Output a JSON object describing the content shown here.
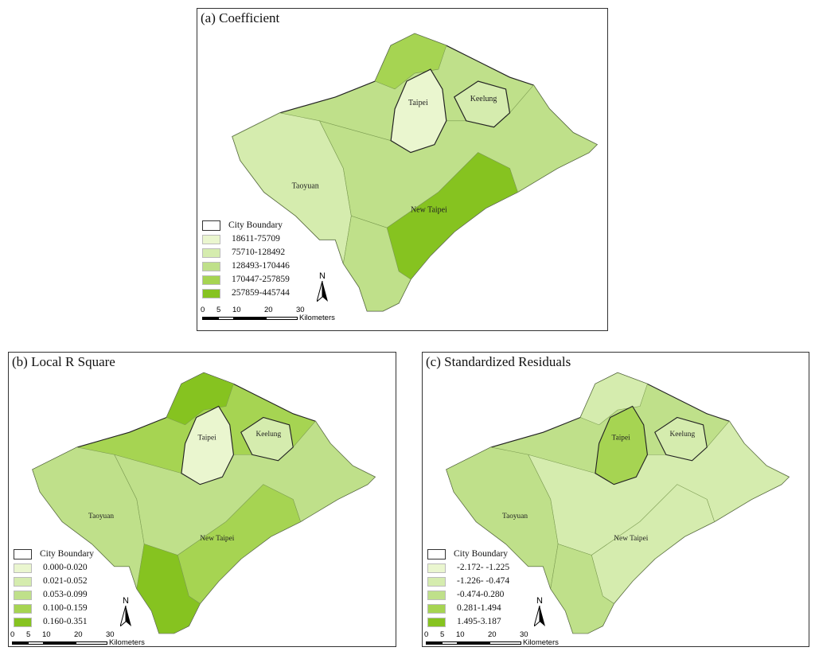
{
  "colors": [
    "#eaf6cf",
    "#d5ecae",
    "#bfe08a",
    "#a6d452",
    "#86c320"
  ],
  "boundary_label": "City Boundary",
  "place_labels": {
    "taipei": "Taipei",
    "keelung": "Keelung",
    "taoyuan": "Taoyuan",
    "new_taipei": "New Taipei"
  },
  "north_label": "N",
  "scale": {
    "ticks": [
      "0",
      "5",
      "10",
      "20",
      "30"
    ],
    "unit": "Kilometers"
  },
  "panels": [
    {
      "title": "(a) Coefficient",
      "classes": [
        "18611-75709",
        "75710-128492",
        "128493-170446",
        "170447-257859",
        "257859-445744"
      ],
      "region_class": {
        "base": 2,
        "taoyuan": 1,
        "taipei": 0,
        "keelung": 1,
        "middle": 2,
        "south_newtaipei": 4,
        "south_tip": 2,
        "north_tip": 3
      }
    },
    {
      "title": "(b) Local R Square",
      "classes": [
        "0.000-0.020",
        "0.021-0.052",
        "0.053-0.099",
        "0.100-0.159",
        "0.160-0.351"
      ],
      "region_class": {
        "base": 3,
        "taoyuan": 2,
        "taipei": 0,
        "keelung": 1,
        "middle": 2,
        "south_newtaipei": 3,
        "south_tip": 4,
        "north_tip": 4
      }
    },
    {
      "title": "(c) Standardized Residuals",
      "classes": [
        "-2.172- -1.225",
        "-1.226- -0.474",
        "-0.474-0.280",
        "0.281-1.494",
        "1.495-3.187"
      ],
      "region_class": {
        "base": 2,
        "taoyuan": 2,
        "taipei": 3,
        "keelung": 1,
        "middle": 1,
        "south_newtaipei": 1,
        "south_tip": 2,
        "north_tip": 1
      }
    }
  ]
}
